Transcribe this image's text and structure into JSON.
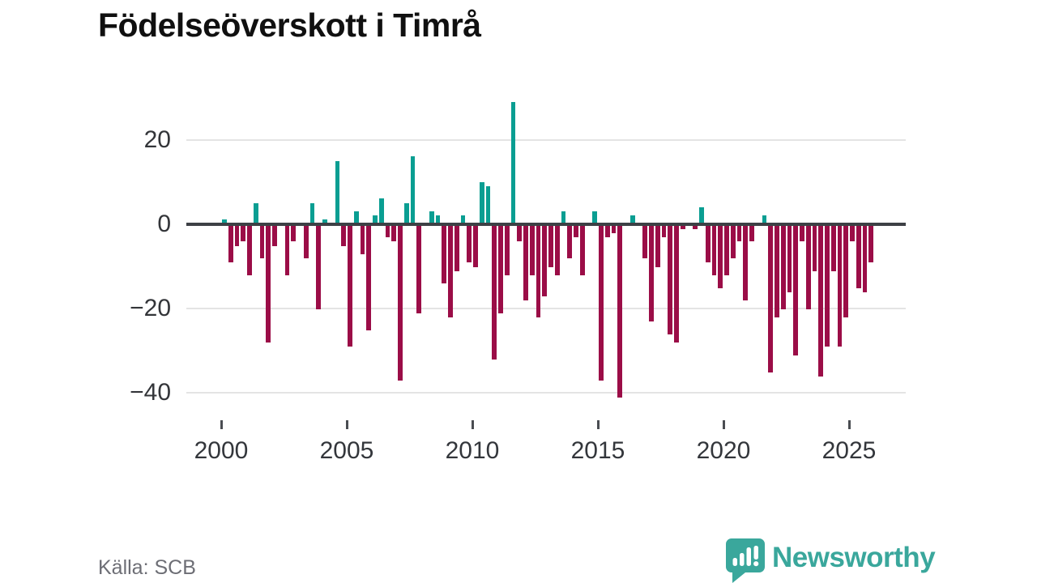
{
  "header": {
    "title": "Födelseöverskott i Timrå"
  },
  "chart_data": {
    "type": "bar",
    "title": "Födelseöverskott i Timrå",
    "source": "Källa: SCB",
    "frequency": "quarterly",
    "start_period": "2000Q1",
    "end_period": "2025Q4",
    "series": [
      {
        "name": "Födelseöverskott per kvartal",
        "values": [
          1,
          -9,
          -5,
          -4,
          -12,
          5,
          -8,
          -28,
          -5,
          0,
          -12,
          -4,
          0,
          -8,
          5,
          -20,
          1,
          0,
          15,
          -5,
          -29,
          3,
          -7,
          -25,
          2,
          6,
          -3,
          -4,
          -37,
          5,
          16,
          -21,
          0,
          3,
          2,
          -14,
          -22,
          -11,
          2,
          -9,
          -10,
          10,
          9,
          -32,
          -21,
          -12,
          29,
          -4,
          -18,
          -12,
          -22,
          -17,
          -10,
          -12,
          3,
          -8,
          -3,
          -12,
          0,
          3,
          -37,
          -3,
          -2,
          -41,
          0,
          2,
          0,
          -8,
          -23,
          -10,
          -3,
          -26,
          -28,
          -1,
          0,
          -1,
          4,
          -9,
          -12,
          -15,
          -12,
          -8,
          -4,
          -18,
          -4,
          0,
          2,
          -35,
          -22,
          -20,
          -16,
          -31,
          -4,
          -20,
          -11,
          -36,
          -29,
          -11,
          -29,
          -22,
          -4,
          -15,
          -16,
          -9
        ]
      }
    ],
    "xticks": [
      2000,
      2005,
      2010,
      2015,
      2020,
      2025
    ],
    "yticks": [
      20,
      0,
      -20,
      -40
    ],
    "ytick_labels": [
      "20",
      "0",
      "−20",
      "−40"
    ],
    "ylim": [
      -45,
      31
    ],
    "grid": true,
    "legend": false,
    "colors": {
      "positive": "#0a9e92",
      "negative": "#9b0d47"
    },
    "gridline_color": "#e4e4e4",
    "zero_axis_color": "#3d4045"
  },
  "footer": {
    "source": "Källa: SCB"
  },
  "logo": {
    "wordmark": "Newsworthy",
    "color": "#3aa79c",
    "icon": "newsworthy-speech-bubble-chart-icon"
  }
}
